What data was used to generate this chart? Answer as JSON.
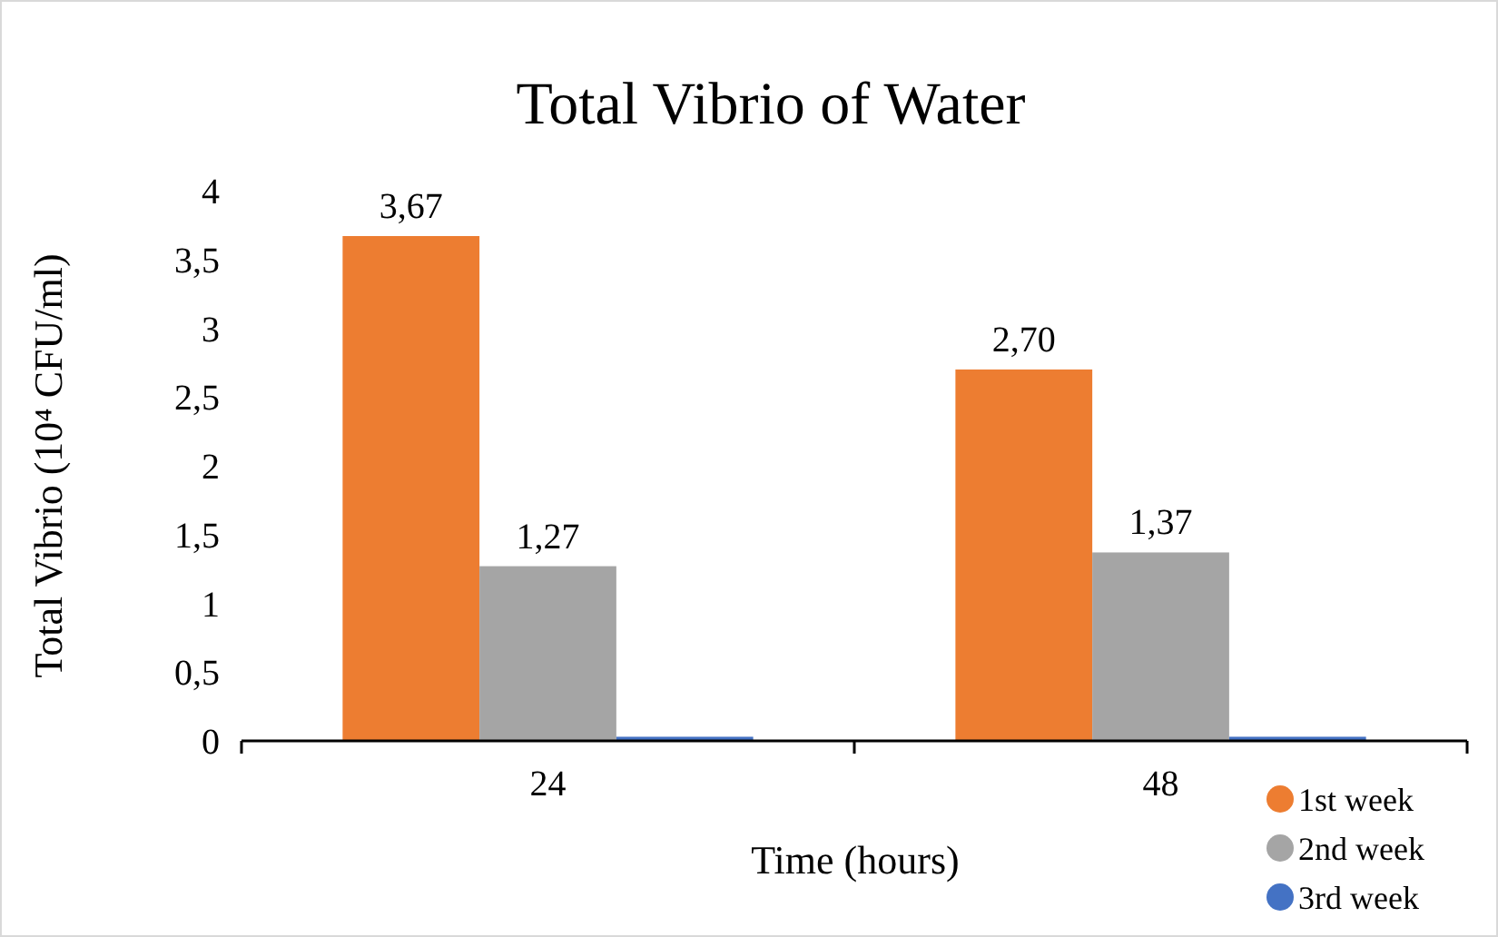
{
  "chart_data": {
    "type": "bar",
    "title": "Total Vibrio of Water",
    "xlabel": "Time (hours)",
    "ylabel": "Total Vibrio (10⁴ CFU/ml)",
    "categories": [
      "24",
      "48"
    ],
    "series": [
      {
        "name": "1st week",
        "color": "#ed7d31",
        "values": [
          3.67,
          2.7
        ],
        "value_labels": [
          "3,67",
          "2,70"
        ]
      },
      {
        "name": "2nd week",
        "color": "#a5a5a5",
        "values": [
          1.27,
          1.37
        ],
        "value_labels": [
          "1,27",
          "1,37"
        ]
      },
      {
        "name": "3rd week",
        "color": "#4472c4",
        "values": [
          0.03,
          0.03
        ],
        "value_labels": [
          null,
          null
        ]
      }
    ],
    "ylim": [
      0,
      4
    ],
    "yticks": [
      0,
      {
        "value": 0.5,
        "label": "0,5"
      },
      1,
      {
        "value": 1.5,
        "label": "1,5"
      },
      2,
      {
        "value": 2.5,
        "label": "2,5"
      },
      3,
      {
        "value": 3.5,
        "label": "3,5"
      },
      4
    ],
    "grid": false,
    "legend": "bottom right",
    "marker": "circle"
  }
}
